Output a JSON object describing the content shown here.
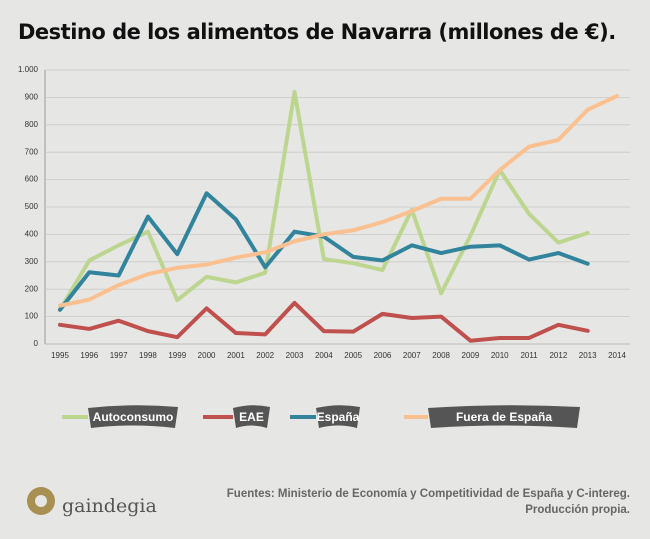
{
  "chart_data": {
    "type": "line",
    "title": "Destino de los alimentos de Navarra (millones de €).",
    "categories": [
      "1995",
      "1996",
      "1997",
      "1998",
      "1999",
      "2000",
      "2001",
      "2002",
      "2003",
      "2004",
      "2005",
      "2006",
      "2007",
      "2008",
      "2009",
      "2010",
      "2011",
      "2012",
      "2013",
      "2014"
    ],
    "series": [
      {
        "name": "Autoconsumo",
        "color": "#bcd68f",
        "values": [
          125,
          305,
          360,
          410,
          160,
          245,
          225,
          260,
          920,
          310,
          295,
          270,
          490,
          185,
          395,
          635,
          475,
          370,
          405,
          null
        ]
      },
      {
        "name": "EAE",
        "color": "#c0504d",
        "values": [
          70,
          55,
          85,
          47,
          25,
          130,
          40,
          35,
          150,
          47,
          45,
          110,
          95,
          100,
          12,
          22,
          22,
          70,
          48,
          null
        ]
      },
      {
        "name": "España",
        "color": "#31849b",
        "values": [
          125,
          262,
          250,
          465,
          328,
          550,
          455,
          280,
          410,
          392,
          318,
          305,
          360,
          332,
          355,
          360,
          308,
          332,
          293,
          null
        ]
      },
      {
        "name": "Fuera de España",
        "color": "#fac090",
        "values": [
          140,
          162,
          215,
          255,
          278,
          290,
          315,
          335,
          375,
          400,
          415,
          445,
          485,
          530,
          530,
          635,
          720,
          745,
          855,
          905
        ]
      }
    ],
    "ylim": [
      0,
      1000
    ],
    "yticks": [
      0,
      100,
      200,
      300,
      400,
      500,
      600,
      700,
      800,
      900,
      {
        "value": 1000,
        "label": "1.000"
      }
    ],
    "grid": true
  },
  "footer": {
    "source": "Fuentes: Ministerio de Economía y Competitividad de España y C-intereg.",
    "note": "Producción propia."
  },
  "logo": {
    "text": "gaindegia"
  }
}
